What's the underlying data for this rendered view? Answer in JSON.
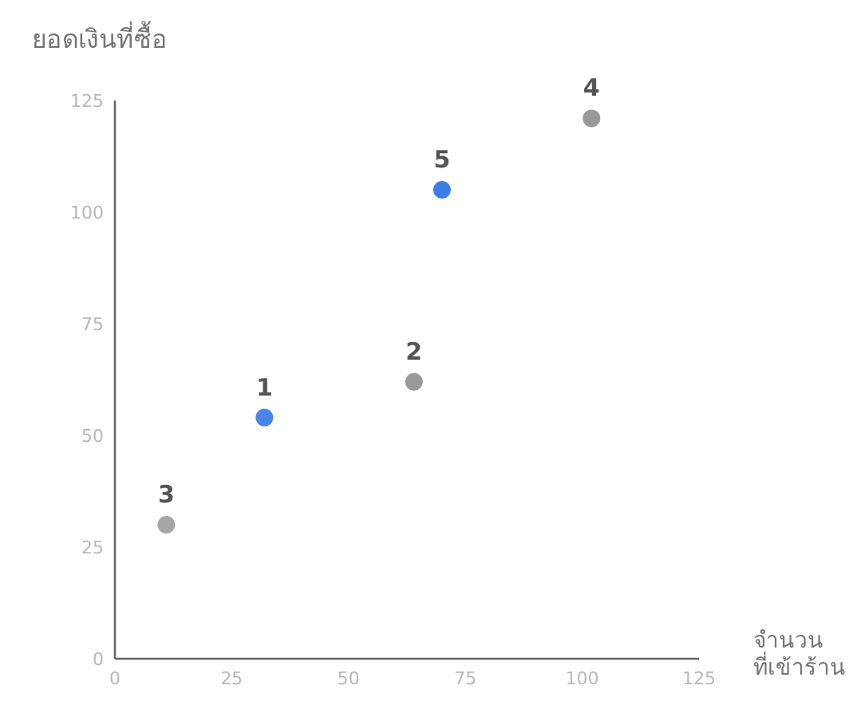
{
  "chart_data": {
    "type": "scatter",
    "ylabel": "ยอดเงินที่ซื้อ",
    "xlabel": "จำนวน\nที่เข้าร้าน",
    "x": [
      32,
      64,
      11,
      102,
      70
    ],
    "values": [
      54,
      62,
      30,
      121,
      105
    ],
    "colors": [
      "#4a86e8",
      "#999999",
      "#a6a6a6",
      "#999999",
      "#3c7ee8"
    ],
    "marker": "circle",
    "xlim": [
      0,
      125
    ],
    "ylim": [
      0,
      125
    ],
    "xticks": [
      0,
      25,
      50,
      75,
      100,
      125
    ],
    "yticks": [
      0,
      25,
      50,
      75,
      100,
      125
    ],
    "grid": false,
    "annotations": [
      {
        "text": "1",
        "x": 32,
        "y": 54
      },
      {
        "text": "2",
        "x": 64,
        "y": 62
      },
      {
        "text": "3",
        "x": 11,
        "y": 30
      },
      {
        "text": "4",
        "x": 102,
        "y": 121
      },
      {
        "text": "5",
        "x": 70,
        "y": 105
      }
    ]
  }
}
